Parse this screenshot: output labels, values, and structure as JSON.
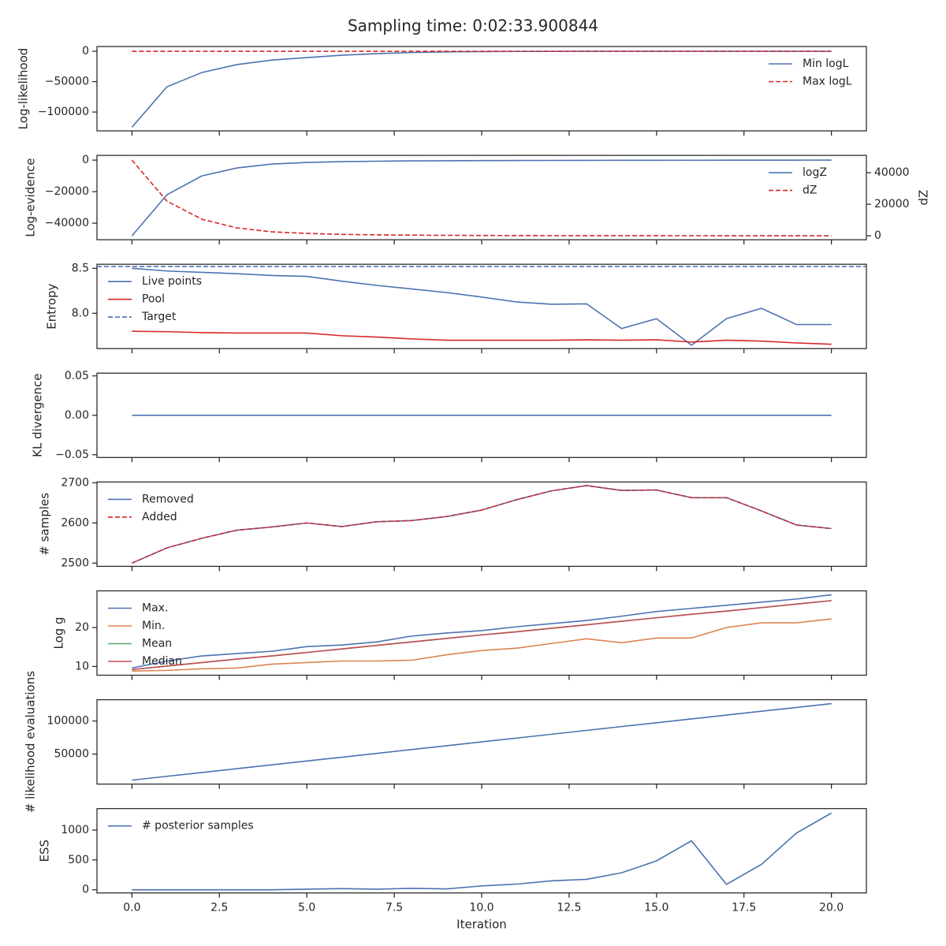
{
  "title": "Sampling time: 0:02:33.900844",
  "xlabel": "Iteration",
  "x": [
    0,
    1,
    2,
    3,
    4,
    5,
    6,
    7,
    8,
    9,
    10,
    11,
    12,
    13,
    14,
    15,
    16,
    17,
    18,
    19,
    20
  ],
  "xlim": [
    -1,
    21
  ],
  "xticks": [
    {
      "value": 0,
      "label": "0.0"
    },
    2.5,
    {
      "value": 5,
      "label": "5.0"
    },
    7.5,
    {
      "value": 10,
      "label": "10.0"
    },
    12.5,
    {
      "value": 15,
      "label": "15.0"
    },
    17.5,
    {
      "value": 20,
      "label": "20.0"
    }
  ],
  "chart_data": [
    {
      "type": "line",
      "ylabel": "Log-likelihood",
      "ylim": [
        -131000,
        7800
      ],
      "yticks": [
        0,
        {
          "value": -50000,
          "label": "−50000"
        },
        {
          "value": -100000,
          "label": "−100000"
        }
      ],
      "legend": "upper right",
      "series": [
        {
          "name": "Min logL",
          "color": "#4c72b0",
          "values": [
            -125000,
            -58500,
            -35000,
            -22000,
            -14500,
            -10500,
            -6500,
            -4000,
            -2000,
            -1000,
            -500,
            -300,
            -200,
            -100,
            -50,
            -20,
            -10,
            0,
            0,
            0,
            0
          ]
        },
        {
          "name": "Max logL",
          "color": "#d62728",
          "dash": true,
          "values": [
            0,
            0,
            0,
            0,
            0,
            0,
            0,
            0,
            0,
            0,
            0,
            0,
            0,
            0,
            0,
            0,
            0,
            0,
            0,
            0,
            0
          ]
        }
      ]
    },
    {
      "type": "line",
      "ylabel": "Log-evidence",
      "y2label": "dZ",
      "ylim": [
        -50500,
        3000
      ],
      "yticks": [
        0,
        {
          "value": -20000,
          "label": "−20000"
        },
        {
          "value": -40000,
          "label": "−40000"
        }
      ],
      "y2lim": [
        -2500,
        51000
      ],
      "y2ticks": [
        0,
        20000,
        40000
      ],
      "legend": "upper right",
      "series": [
        {
          "name": "logZ",
          "color": "#4c72b0",
          "values": [
            -48000,
            -22000,
            -10000,
            -5000,
            -2500,
            -1500,
            -1000,
            -700,
            -500,
            -400,
            -300,
            -250,
            -200,
            -150,
            -120,
            -100,
            -80,
            -60,
            -40,
            -20,
            0
          ]
        },
        {
          "name": "dZ",
          "color": "#d62728",
          "dash": true,
          "axis": "y2",
          "values": [
            48000,
            22000,
            10500,
            5000,
            2500,
            1500,
            900,
            600,
            400,
            300,
            200,
            150,
            100,
            100,
            80,
            60,
            50,
            40,
            30,
            20,
            10
          ]
        }
      ]
    },
    {
      "type": "line",
      "ylabel": "Entropy",
      "ylim": [
        7.607,
        8.545
      ],
      "yticks": [
        8.5,
        {
          "value": 8,
          "label": "8.0"
        }
      ],
      "legend": "upper left",
      "series": [
        {
          "name": "Live points",
          "color": "#4c72b0",
          "values": [
            8.5,
            8.47,
            8.455,
            8.44,
            8.42,
            8.41,
            8.357,
            8.31,
            8.27,
            8.23,
            8.18,
            8.125,
            8.1,
            8.105,
            7.83,
            7.94,
            7.645,
            7.94,
            8.055,
            7.875,
            7.875
          ]
        },
        {
          "name": "Pool",
          "color": "#d62728",
          "values": [
            7.8,
            7.795,
            7.785,
            7.78,
            7.78,
            7.78,
            7.75,
            7.735,
            7.715,
            7.7,
            7.7,
            7.7,
            7.7,
            7.705,
            7.7,
            7.705,
            7.68,
            7.7,
            7.69,
            7.67,
            7.655
          ]
        },
        {
          "name": "Target",
          "color": "#4c72b0",
          "dash": true,
          "value": 8.52
        }
      ]
    },
    {
      "type": "line",
      "ylabel": "KL divergence",
      "ylim": [
        -0.0535,
        0.0535
      ],
      "yticks": [
        0.05,
        {
          "value": 0,
          "label": "0.00"
        },
        {
          "value": -0.05,
          "label": "−0.05"
        }
      ],
      "series": [
        {
          "color": "#4c72b0",
          "values": [
            0,
            0,
            0,
            0,
            0,
            0,
            0,
            0,
            0,
            0,
            0,
            0,
            0,
            0,
            0,
            0,
            0,
            0,
            0,
            0,
            0
          ]
        }
      ]
    },
    {
      "type": "line",
      "ylabel": "# samples",
      "ylim": [
        2492,
        2702
      ],
      "yticks": [
        2500,
        2600,
        2700
      ],
      "legend": "upper left",
      "series": [
        {
          "name": "Removed",
          "color": "#4c72b0",
          "values": [
            2500,
            2538,
            2562,
            2582,
            2590,
            2600,
            2591,
            2603,
            2606,
            2616,
            2632,
            2658,
            2680,
            2693,
            2681,
            2682,
            2663,
            2663,
            2630,
            2595,
            2586
          ]
        },
        {
          "name": "Added",
          "color": "#d62728",
          "dash": true,
          "values": [
            2500,
            2538,
            2562,
            2582,
            2590,
            2600,
            2591,
            2603,
            2606,
            2616,
            2632,
            2658,
            2680,
            2693,
            2681,
            2682,
            2663,
            2663,
            2630,
            2595,
            2586
          ]
        }
      ]
    },
    {
      "type": "line",
      "ylabel": "Log g",
      "ylim": [
        7.76,
        29.4
      ],
      "yticks": [
        10,
        20
      ],
      "legend": "upper left",
      "series": [
        {
          "name": "Max.",
          "color": "#4c72b0",
          "values": [
            9.6,
            11.4,
            12.7,
            13.3,
            13.9,
            15.1,
            15.5,
            16.3,
            17.8,
            18.6,
            19.2,
            20.2,
            21,
            21.8,
            22.9,
            24.1,
            24.9,
            25.7,
            26.5,
            27.3,
            28.4
          ]
        },
        {
          "name": "Min.",
          "color": "#dd8452",
          "values": [
            8.8,
            9,
            9.4,
            9.6,
            10.6,
            11,
            11.4,
            11.4,
            11.6,
            13,
            14.1,
            14.7,
            15.9,
            17.1,
            16.1,
            17.3,
            17.3,
            20,
            21.2,
            21.2,
            22.2
          ]
        },
        {
          "name": "Mean",
          "color": "#55a868",
          "values": [
            9.2,
            10.1,
            11,
            11.9,
            12.7,
            13.6,
            14.5,
            15.4,
            16.3,
            17.2,
            18.1,
            18.9,
            19.8,
            20.7,
            21.6,
            22.5,
            23.4,
            24.2,
            25.1,
            26,
            26.9
          ]
        },
        {
          "name": "Median",
          "color": "#c44e52",
          "values": [
            9.2,
            10.1,
            11,
            11.9,
            12.7,
            13.6,
            14.5,
            15.4,
            16.3,
            17.2,
            18.1,
            18.9,
            19.8,
            20.7,
            21.6,
            22.5,
            23.4,
            24.2,
            25.1,
            26,
            26.9
          ]
        }
      ]
    },
    {
      "type": "line",
      "ylabel": "# likelihood evaluations",
      "ylim": [
        4760,
        132100
      ],
      "yticks": [
        50000,
        100000
      ],
      "series": [
        {
          "color": "#4c72b0",
          "values": [
            10700,
            16500,
            22200,
            28000,
            33800,
            39600,
            45300,
            51100,
            56900,
            62700,
            68500,
            74200,
            80000,
            85800,
            91600,
            97300,
            103100,
            108900,
            114700,
            120400,
            126200
          ]
        }
      ]
    },
    {
      "type": "line",
      "ylabel": "ESS",
      "ylim": [
        -53,
        1360
      ],
      "yticks": [
        0,
        500,
        1000
      ],
      "legend": "upper left",
      "series": [
        {
          "name": "# posterior samples",
          "color": "#4c72b0",
          "values": [
            0,
            0,
            0,
            0,
            0,
            10,
            20,
            10,
            25,
            15,
            65,
            95,
            150,
            175,
            285,
            485,
            820,
            90,
            425,
            950,
            1285
          ]
        }
      ]
    }
  ]
}
